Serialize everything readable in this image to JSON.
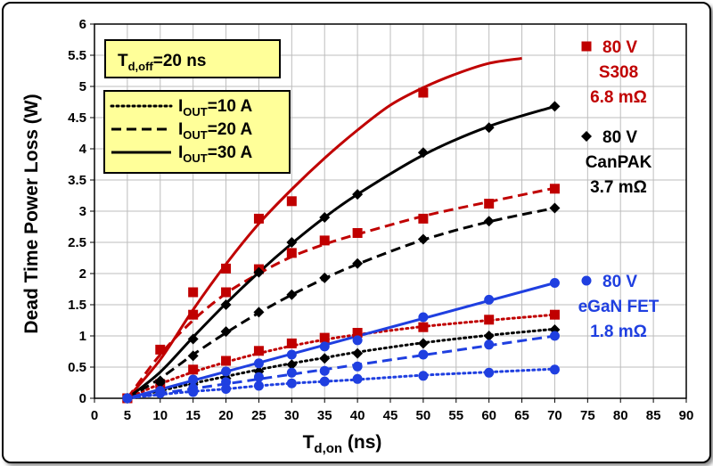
{
  "chart_data": {
    "type": "line",
    "title": "",
    "xlabel_main": "T",
    "xlabel_sub": "d,on",
    "xlabel_unit": " (ns)",
    "ylabel": "Dead Time Power Loss (W)",
    "xlim": [
      0,
      90
    ],
    "ylim": [
      0,
      6
    ],
    "xticks": [
      0,
      5,
      10,
      15,
      20,
      25,
      30,
      35,
      40,
      45,
      50,
      55,
      60,
      65,
      70,
      75,
      80,
      85,
      90
    ],
    "xtick_labels": [
      "0",
      "5",
      "10",
      "15",
      "20",
      "25",
      "30",
      "35",
      "40",
      "45",
      "50",
      "55",
      "60",
      "65",
      "70",
      "75",
      "80",
      "85",
      "90"
    ],
    "yticks": [
      0,
      0.5,
      1,
      1.5,
      2,
      2.5,
      3,
      3.5,
      4,
      4.5,
      5,
      5.5,
      6
    ],
    "ytick_labels": [
      "0",
      "0.5",
      "1",
      "1.5",
      "2",
      "2.5",
      "3",
      "3.5",
      "4",
      "4.5",
      "5",
      "5.5",
      "6"
    ],
    "grid": true,
    "toff_box": {
      "main": "T",
      "sub": "d,off",
      "rest": "=20 ns"
    },
    "line_legend": [
      {
        "main": "I",
        "sub": "OUT",
        "rest": "=10 A",
        "style": "dotted"
      },
      {
        "main": "I",
        "sub": "OUT",
        "rest": "=20 A",
        "style": "dashed"
      },
      {
        "main": "I",
        "sub": "OUT",
        "rest": "=30 A",
        "style": "solid"
      }
    ],
    "devices": [
      {
        "id": "s308",
        "color": "#c00000",
        "marker": "square",
        "lines": [
          "80 V",
          "S308",
          "6.8 mΩ"
        ]
      },
      {
        "id": "canpak",
        "color": "#000000",
        "marker": "diamond",
        "lines": [
          "80 V",
          "CanPAK",
          "3.7 mΩ"
        ]
      },
      {
        "id": "egan",
        "color": "#1f3fe0",
        "marker": "circle",
        "lines": [
          "80 V",
          "eGaN FET",
          "1.8 mΩ"
        ]
      }
    ],
    "series": [
      {
        "device": "s308",
        "current": "30 A",
        "style": "solid",
        "points": {
          "x": [
            5,
            10,
            15,
            20,
            25,
            30,
            50
          ],
          "y": [
            0,
            0.78,
            1.7,
            2.08,
            2.88,
            3.16,
            4.9
          ]
        },
        "fit": {
          "x": [
            5,
            10,
            15,
            20,
            25,
            30,
            35,
            40,
            45,
            50,
            55,
            60,
            65
          ],
          "y": [
            0,
            0.62,
            1.42,
            2.15,
            2.8,
            3.35,
            3.85,
            4.3,
            4.7,
            4.98,
            5.2,
            5.37,
            5.45
          ]
        }
      },
      {
        "device": "s308",
        "current": "20 A",
        "style": "dashed",
        "points": {
          "x": [
            5,
            15,
            20,
            25,
            30,
            35,
            40,
            50,
            60,
            70
          ],
          "y": [
            0,
            1.34,
            1.7,
            2.07,
            2.33,
            2.53,
            2.65,
            2.88,
            3.12,
            3.36
          ]
        },
        "fit": {
          "x": [
            5,
            10,
            15,
            20,
            25,
            30,
            35,
            40,
            50,
            60,
            70
          ],
          "y": [
            0,
            0.7,
            1.25,
            1.68,
            2.0,
            2.27,
            2.47,
            2.63,
            2.92,
            3.15,
            3.37
          ]
        }
      },
      {
        "device": "s308",
        "current": "10 A",
        "style": "dotted",
        "points": {
          "x": [
            5,
            10,
            15,
            20,
            25,
            30,
            35,
            40,
            50,
            60,
            70
          ],
          "y": [
            0,
            0.23,
            0.46,
            0.6,
            0.76,
            0.88,
            0.97,
            1.05,
            1.14,
            1.26,
            1.34
          ]
        },
        "fit": {
          "x": [
            5,
            10,
            15,
            20,
            25,
            30,
            35,
            40,
            50,
            60,
            70
          ],
          "y": [
            0,
            0.23,
            0.42,
            0.58,
            0.72,
            0.84,
            0.94,
            1.02,
            1.15,
            1.25,
            1.34
          ]
        }
      },
      {
        "device": "canpak",
        "current": "30 A",
        "style": "solid",
        "points": {
          "x": [
            5,
            10,
            15,
            20,
            25,
            30,
            35,
            40,
            50,
            60,
            70
          ],
          "y": [
            0,
            0.25,
            0.95,
            1.5,
            2.02,
            2.5,
            2.9,
            3.27,
            3.94,
            4.34,
            4.68
          ]
        },
        "fit": {
          "x": [
            5,
            10,
            15,
            20,
            25,
            30,
            35,
            40,
            50,
            60,
            70
          ],
          "y": [
            0,
            0.42,
            0.98,
            1.52,
            2.02,
            2.48,
            2.9,
            3.27,
            3.9,
            4.36,
            4.68
          ]
        }
      },
      {
        "device": "canpak",
        "current": "20 A",
        "style": "dashed",
        "points": {
          "x": [
            5,
            10,
            15,
            20,
            25,
            30,
            35,
            40,
            50,
            60,
            70
          ],
          "y": [
            0,
            0.28,
            0.68,
            1.07,
            1.38,
            1.66,
            1.93,
            2.16,
            2.55,
            2.84,
            3.05
          ]
        },
        "fit": {
          "x": [
            5,
            10,
            15,
            20,
            25,
            30,
            35,
            40,
            50,
            60,
            70
          ],
          "y": [
            0,
            0.32,
            0.7,
            1.05,
            1.37,
            1.66,
            1.92,
            2.15,
            2.54,
            2.83,
            3.05
          ]
        }
      },
      {
        "device": "canpak",
        "current": "10 A",
        "style": "dotted",
        "points": {
          "x": [
            5,
            10,
            15,
            20,
            25,
            30,
            35,
            40,
            50,
            60,
            70
          ],
          "y": [
            0,
            0.1,
            0.22,
            0.32,
            0.43,
            0.54,
            0.64,
            0.72,
            0.88,
            1.0,
            1.1
          ]
        },
        "fit": {
          "x": [
            5,
            10,
            15,
            20,
            25,
            30,
            35,
            40,
            50,
            60,
            70
          ],
          "y": [
            0,
            0.12,
            0.24,
            0.35,
            0.46,
            0.56,
            0.65,
            0.74,
            0.89,
            1.01,
            1.11
          ]
        }
      },
      {
        "device": "egan",
        "current": "30 A",
        "style": "solid",
        "points": {
          "x": [
            5,
            10,
            15,
            20,
            25,
            30,
            35,
            40,
            50,
            60,
            70
          ],
          "y": [
            0,
            0.12,
            0.3,
            0.43,
            0.56,
            0.7,
            0.83,
            0.93,
            1.3,
            1.58,
            1.85
          ]
        },
        "fit": {
          "x": [
            5,
            70
          ],
          "y": [
            0,
            1.85
          ]
        }
      },
      {
        "device": "egan",
        "current": "20 A",
        "style": "dashed",
        "points": {
          "x": [
            5,
            10,
            15,
            20,
            25,
            30,
            35,
            40,
            50,
            60,
            70
          ],
          "y": [
            0,
            0.1,
            0.16,
            0.26,
            0.34,
            0.41,
            0.44,
            0.51,
            0.7,
            0.86,
            1.0
          ]
        },
        "fit": {
          "x": [
            5,
            70
          ],
          "y": [
            0,
            1.0
          ]
        }
      },
      {
        "device": "egan",
        "current": "10 A",
        "style": "dotted",
        "points": {
          "x": [
            5,
            10,
            15,
            20,
            25,
            30,
            35,
            40,
            50,
            60,
            70
          ],
          "y": [
            0,
            0.08,
            0.1,
            0.15,
            0.2,
            0.24,
            0.27,
            0.31,
            0.36,
            0.41,
            0.46
          ]
        },
        "fit": {
          "x": [
            5,
            10,
            15,
            20,
            25,
            30,
            35,
            40,
            50,
            60,
            70
          ],
          "y": [
            0,
            0.06,
            0.11,
            0.15,
            0.2,
            0.24,
            0.27,
            0.3,
            0.37,
            0.42,
            0.47
          ]
        }
      }
    ]
  }
}
